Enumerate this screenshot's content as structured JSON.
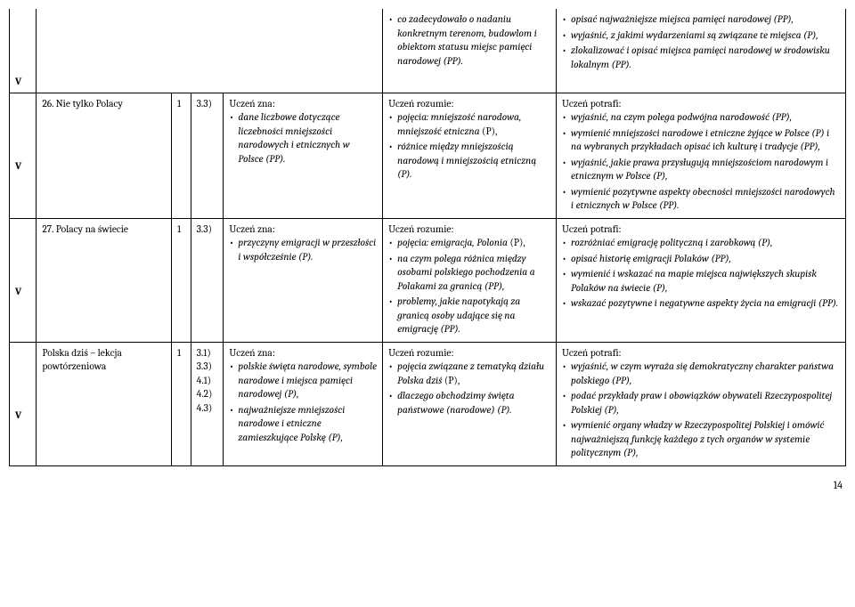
{
  "rows": [
    {
      "v": "V",
      "col6_lead": "",
      "col6_items": [
        {
          "i": true,
          "t": "co zadecydowało o nadaniu konkretnym terenom, budowlom i obiektom statusu miejsc pamięci narodowej (PP)."
        }
      ],
      "col7_lead": "",
      "col7_items": [
        {
          "i": true,
          "t": "opisać najważniejsze miejsca pamięci narodowej (PP),"
        },
        {
          "i": true,
          "t": "wyjaśnić, z jakimi wydarzeniami są związane te miejsca (P),"
        },
        {
          "i": true,
          "t": "zlokalizować i opisać miejsca pamięci narodowej w środowisku lokalnym (PP)."
        }
      ]
    },
    {
      "v": "V",
      "title": "26. Nie tylko Polacy",
      "col3": "1",
      "col4": "3.3)",
      "col5_lead": "Uczeń zna:",
      "col5_items": [
        {
          "i": true,
          "t": "dane liczbowe dotyczące liczebności mniejszości narodowych i etnicznych w Polsce (PP)."
        }
      ],
      "col6_lead": "Uczeń rozumie:",
      "col6_items": [
        {
          "i_parts": [
            {
              "i": true,
              "t": "pojęcia: "
            },
            {
              "i": true,
              "t": "mniejszość narodowa, mniejszość etniczna"
            },
            {
              "i": false,
              "t": " (P),"
            }
          ]
        },
        {
          "i": true,
          "t": "różnice między mniejszością narodową i mniejszością etniczną (P)."
        }
      ],
      "col7_lead": "Uczeń potrafi:",
      "col7_items": [
        {
          "i": true,
          "t": "wyjaśnić, na czym polega podwójna narodowość (PP),"
        },
        {
          "i": true,
          "t": "wymienić mniejszości narodowe i etniczne żyjące w Polsce (P) i na wybranych przykładach opisać ich kulturę i tradycje (PP),"
        },
        {
          "i": true,
          "t": "wyjaśnić, jakie prawa przysługują mniejszościom narodowym i etnicznym w Polsce (P),"
        },
        {
          "i": true,
          "t": "wymienić pozytywne aspekty obecności mniejszości narodowych i etnicznych w Polsce (PP)."
        }
      ]
    },
    {
      "v": "V",
      "title": "27. Polacy na świecie",
      "col3": "1",
      "col4": "3.3)",
      "col5_lead": "Uczeń zna:",
      "col5_items": [
        {
          "i": true,
          "t": "przyczyny emigracji w przeszłości i współcześnie (P)."
        }
      ],
      "col6_lead": "Uczeń rozumie:",
      "col6_items": [
        {
          "i_parts": [
            {
              "i": true,
              "t": "pojęcia: "
            },
            {
              "i": true,
              "t": "emigracja, Polonia"
            },
            {
              "i": false,
              "t": " (P),"
            }
          ]
        },
        {
          "i": true,
          "t": "na czym polega różnica między osobami polskiego pochodzenia a Polakami za granicą (PP),"
        },
        {
          "i": true,
          "t": "problemy, jakie napotykają za granicą osoby udające się na emigrację (PP)."
        }
      ],
      "col7_lead": "Uczeń potrafi:",
      "col7_items": [
        {
          "i": true,
          "t": "rozróżniać emigrację polityczną i zarobkową (P),"
        },
        {
          "i": true,
          "t": "opisać historię emigracji Polaków (PP),"
        },
        {
          "i": true,
          "t": "wymienić i wskazać na mapie miejsca największych skupisk Polaków na świecie (P),"
        },
        {
          "i": true,
          "t": "wskazać pozytywne i negatywne aspekty życia na emigracji (PP)."
        }
      ]
    },
    {
      "v": "V",
      "title": "Polska dziś – lekcja powtórzeniowa",
      "col3": "1",
      "col4": "3.1)\n3.3)\n4.1)\n4.2)\n4.3)",
      "col5_lead": "Uczeń zna:",
      "col5_items": [
        {
          "i": true,
          "t": "polskie święta narodowe, symbole narodowe i miejsca pamięci narodowej (P),"
        },
        {
          "i": true,
          "t": "najważniejsze mniejszości narodowe i etniczne zamieszkujące Polskę (P),"
        }
      ],
      "col6_lead": "Uczeń rozumie:",
      "col6_items": [
        {
          "i_parts": [
            {
              "i": true,
              "t": "pojęcia związane z tematyką działu "
            },
            {
              "i": true,
              "t": "Polska dziś"
            },
            {
              "i": false,
              "t": " (P),"
            }
          ]
        },
        {
          "i": true,
          "t": "dlaczego obchodzimy święta państwowe (narodowe) (P)."
        }
      ],
      "col7_lead": "Uczeń potrafi:",
      "col7_items": [
        {
          "i": true,
          "t": "wyjaśnić, w czym wyraża się demokratyczny charakter państwa polskiego (PP),"
        },
        {
          "i": true,
          "t": "podać przykłady praw i obowiązków obywateli Rzeczypospolitej Polskiej (P),"
        },
        {
          "i": true,
          "t": "wymienić organy władzy w Rzeczypospolitej Polskiej i omówić najważniejszą funkcję każdego z tych organów w systemie politycznym (P),"
        }
      ]
    }
  ],
  "pageNumber": "14"
}
